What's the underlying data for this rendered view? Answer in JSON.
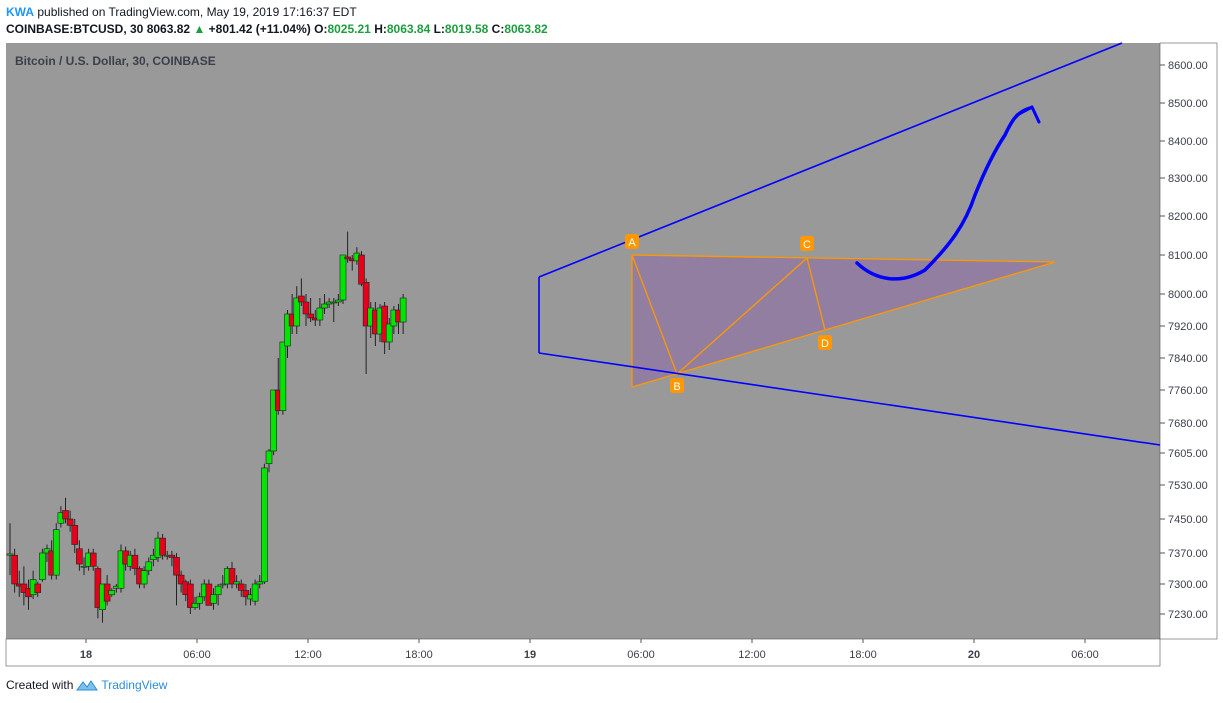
{
  "header": {
    "author": "KWA",
    "published_text": "published on TradingView.com, May 19, 2019 17:16:37 EDT",
    "symbol": "COINBASE:BTCUSD, 30",
    "last": "8063.82",
    "change": "+801.42 (+11.04%)",
    "o_label": "O:",
    "o_value": "8025.21",
    "h_label": "H:",
    "h_value": "8063.84",
    "l_label": "L:",
    "l_value": "8019.58",
    "c_label": "C:",
    "c_value": "8063.82"
  },
  "footer": {
    "created_with": "Created with",
    "brand": "TradingView"
  },
  "colors": {
    "plot_bg": "#999999",
    "up": "#00e600",
    "down": "#e6001a",
    "trend": "#0000ff",
    "pattern": "#ff9800"
  },
  "chart_data": {
    "type": "candlestick",
    "title": "Bitcoin / U.S. Dollar, 30, COINBASE",
    "interval_minutes": 30,
    "y_axis_ticks": [
      "8600.00",
      "8500.00",
      "8400.00",
      "8300.00",
      "8200.00",
      "8100.00",
      "8000.00",
      "7920.00",
      "7840.00",
      "7760.00",
      "7680.00",
      "7605.00",
      "7530.00",
      "7450.00",
      "7370.00",
      "7300.00",
      "7230.00"
    ],
    "x_axis_ticks": [
      "18",
      "06:00",
      "12:00",
      "18:00",
      "19",
      "06:00",
      "12:00",
      "18:00",
      "20",
      "06:00"
    ],
    "candles": [
      {
        "time": "May 17 22:30",
        "o": 7365,
        "h": 7440,
        "l": 7320,
        "c": 7368
      },
      {
        "time": "May 17 23:00",
        "o": 7365,
        "h": 7380,
        "l": 7280,
        "c": 7300
      },
      {
        "time": "May 17 23:30",
        "o": 7300,
        "h": 7330,
        "l": 7270,
        "c": 7295
      },
      {
        "time": "May 18 00:00",
        "o": 7300,
        "h": 7340,
        "l": 7250,
        "c": 7280
      },
      {
        "time": "May 18 00:30",
        "o": 7290,
        "h": 7310,
        "l": 7240,
        "c": 7270
      },
      {
        "time": "May 18 01:00",
        "o": 7275,
        "h": 7330,
        "l": 7265,
        "c": 7310
      },
      {
        "time": "May 18 01:30",
        "o": 7300,
        "h": 7305,
        "l": 7270,
        "c": 7280
      },
      {
        "time": "May 18 02:00",
        "o": 7310,
        "h": 7380,
        "l": 7305,
        "c": 7370
      },
      {
        "time": "May 18 02:30",
        "o": 7370,
        "h": 7390,
        "l": 7350,
        "c": 7380
      },
      {
        "time": "May 18 03:00",
        "o": 7375,
        "h": 7400,
        "l": 7310,
        "c": 7320
      },
      {
        "time": "May 18 03:30",
        "o": 7320,
        "h": 7440,
        "l": 7310,
        "c": 7425
      },
      {
        "time": "May 18 04:00",
        "o": 7440,
        "h": 7480,
        "l": 7430,
        "c": 7465
      },
      {
        "time": "May 18 04:30",
        "o": 7470,
        "h": 7500,
        "l": 7440,
        "c": 7450
      },
      {
        "time": "May 18 05:00",
        "o": 7450,
        "h": 7470,
        "l": 7420,
        "c": 7435
      },
      {
        "time": "May 18 05:30",
        "o": 7435,
        "h": 7450,
        "l": 7370,
        "c": 7390
      },
      {
        "time": "May 18 06:00",
        "o": 7380,
        "h": 7400,
        "l": 7330,
        "c": 7345
      },
      {
        "time": "May 18 06:30",
        "o": 7340,
        "h": 7360,
        "l": 7320,
        "c": 7340
      },
      {
        "time": "May 18 07:00",
        "o": 7340,
        "h": 7380,
        "l": 7330,
        "c": 7370
      },
      {
        "time": "May 18 07:30",
        "o": 7370,
        "h": 7380,
        "l": 7330,
        "c": 7340
      },
      {
        "time": "May 18 08:00",
        "o": 7335,
        "h": 7340,
        "l": 7220,
        "c": 7245
      },
      {
        "time": "May 18 08:30",
        "o": 7240,
        "h": 7300,
        "l": 7210,
        "c": 7300
      },
      {
        "time": "May 18 09:00",
        "o": 7300,
        "h": 7320,
        "l": 7250,
        "c": 7260
      },
      {
        "time": "May 18 09:30",
        "o": 7275,
        "h": 7290,
        "l": 7270,
        "c": 7285
      },
      {
        "time": "May 18 10:00",
        "o": 7290,
        "h": 7300,
        "l": 7280,
        "c": 7295
      },
      {
        "time": "May 18 10:30",
        "o": 7290,
        "h": 7390,
        "l": 7280,
        "c": 7375
      },
      {
        "time": "May 18 11:00",
        "o": 7375,
        "h": 7385,
        "l": 7330,
        "c": 7345
      },
      {
        "time": "May 18 11:30",
        "o": 7340,
        "h": 7375,
        "l": 7330,
        "c": 7365
      },
      {
        "time": "May 18 12:00",
        "o": 7365,
        "h": 7380,
        "l": 7320,
        "c": 7335
      },
      {
        "time": "May 18 12:30",
        "o": 7335,
        "h": 7340,
        "l": 7290,
        "c": 7300
      },
      {
        "time": "May 18 13:00",
        "o": 7300,
        "h": 7340,
        "l": 7290,
        "c": 7330
      },
      {
        "time": "May 18 13:30",
        "o": 7330,
        "h": 7360,
        "l": 7320,
        "c": 7350
      },
      {
        "time": "May 18 14:00",
        "o": 7355,
        "h": 7380,
        "l": 7340,
        "c": 7365
      },
      {
        "time": "May 18 14:30",
        "o": 7360,
        "h": 7420,
        "l": 7350,
        "c": 7405
      },
      {
        "time": "May 18 15:00",
        "o": 7405,
        "h": 7415,
        "l": 7355,
        "c": 7365
      },
      {
        "time": "May 18 15:30",
        "o": 7365,
        "h": 7375,
        "l": 7355,
        "c": 7365
      },
      {
        "time": "May 18 16:00",
        "o": 7365,
        "h": 7375,
        "l": 7340,
        "c": 7360
      },
      {
        "time": "May 18 16:30",
        "o": 7360,
        "h": 7370,
        "l": 7250,
        "c": 7320
      },
      {
        "time": "May 18 17:00",
        "o": 7320,
        "h": 7330,
        "l": 7280,
        "c": 7300
      },
      {
        "time": "May 18 17:30",
        "o": 7305,
        "h": 7310,
        "l": 7260,
        "c": 7275
      },
      {
        "time": "May 18 18:00",
        "o": 7300,
        "h": 7310,
        "l": 7230,
        "c": 7245
      },
      {
        "time": "May 18 18:30",
        "o": 7245,
        "h": 7270,
        "l": 7240,
        "c": 7255
      },
      {
        "time": "May 18 19:00",
        "o": 7255,
        "h": 7280,
        "l": 7240,
        "c": 7270
      },
      {
        "time": "May 18 19:30",
        "o": 7270,
        "h": 7310,
        "l": 7260,
        "c": 7300
      },
      {
        "time": "May 18 20:00",
        "o": 7300,
        "h": 7310,
        "l": 7250,
        "c": 7250
      },
      {
        "time": "May 18 20:30",
        "o": 7255,
        "h": 7290,
        "l": 7240,
        "c": 7275
      },
      {
        "time": "May 18 21:00",
        "o": 7275,
        "h": 7300,
        "l": 7250,
        "c": 7295
      },
      {
        "time": "May 18 21:30",
        "o": 7300,
        "h": 7320,
        "l": 7290,
        "c": 7300
      },
      {
        "time": "May 18 22:00",
        "o": 7300,
        "h": 7340,
        "l": 7290,
        "c": 7335
      },
      {
        "time": "May 18 22:30",
        "o": 7335,
        "h": 7350,
        "l": 7290,
        "c": 7300
      },
      {
        "time": "May 18 23:00",
        "o": 7300,
        "h": 7320,
        "l": 7290,
        "c": 7305
      },
      {
        "time": "May 18 23:30",
        "o": 7300,
        "h": 7310,
        "l": 7270,
        "c": 7285
      },
      {
        "time": "May 19 00:00",
        "o": 7285,
        "h": 7300,
        "l": 7250,
        "c": 7270
      },
      {
        "time": "May 19 00:30",
        "o": 7265,
        "h": 7290,
        "l": 7250,
        "c": 7275
      },
      {
        "time": "May 19 01:00",
        "o": 7260,
        "h": 7310,
        "l": 7250,
        "c": 7300
      },
      {
        "time": "May 19 01:30",
        "o": 7300,
        "h": 7320,
        "l": 7290,
        "c": 7305
      },
      {
        "time": "May 19 02:00",
        "o": 7305,
        "h": 7580,
        "l": 7300,
        "c": 7570
      },
      {
        "time": "May 19 02:30",
        "o": 7580,
        "h": 7615,
        "l": 7560,
        "c": 7610
      },
      {
        "time": "May 19 03:00",
        "o": 7610,
        "h": 7760,
        "l": 7600,
        "c": 7760
      },
      {
        "time": "May 19 03:30",
        "o": 7760,
        "h": 7840,
        "l": 7700,
        "c": 7710
      },
      {
        "time": "May 19 04:00",
        "o": 7710,
        "h": 7880,
        "l": 7700,
        "c": 7880
      },
      {
        "time": "May 19 04:30",
        "o": 7870,
        "h": 7960,
        "l": 7840,
        "c": 7950
      },
      {
        "time": "May 19 05:00",
        "o": 7950,
        "h": 8000,
        "l": 7900,
        "c": 7920
      },
      {
        "time": "May 19 05:30",
        "o": 7920,
        "h": 8020,
        "l": 7900,
        "c": 7990
      },
      {
        "time": "May 19 06:00",
        "o": 7995,
        "h": 8040,
        "l": 7970,
        "c": 7980
      },
      {
        "time": "May 19 06:30",
        "o": 7980,
        "h": 8000,
        "l": 7920,
        "c": 7950
      },
      {
        "time": "May 19 07:00",
        "o": 7950,
        "h": 7990,
        "l": 7930,
        "c": 7940
      },
      {
        "time": "May 19 07:30",
        "o": 7940,
        "h": 7960,
        "l": 7920,
        "c": 7935
      },
      {
        "time": "May 19 08:00",
        "o": 7935,
        "h": 7990,
        "l": 7920,
        "c": 7965
      },
      {
        "time": "May 19 08:30",
        "o": 7965,
        "h": 8000,
        "l": 7950,
        "c": 7975
      },
      {
        "time": "May 19 09:00",
        "o": 7975,
        "h": 7990,
        "l": 7965,
        "c": 7980
      },
      {
        "time": "May 19 09:30",
        "o": 7980,
        "h": 7990,
        "l": 7930,
        "c": 7980
      },
      {
        "time": "May 19 10:00",
        "o": 7980,
        "h": 8000,
        "l": 7970,
        "c": 7985
      },
      {
        "time": "May 19 10:30",
        "o": 7985,
        "h": 8100,
        "l": 7975,
        "c": 8100
      },
      {
        "time": "May 19 11:00",
        "o": 8095,
        "h": 8160,
        "l": 8080,
        "c": 8090
      },
      {
        "time": "May 19 11:30",
        "o": 8090,
        "h": 8100,
        "l": 8060,
        "c": 8085
      },
      {
        "time": "May 19 12:00",
        "o": 8085,
        "h": 8120,
        "l": 8075,
        "c": 8105
      },
      {
        "time": "May 19 12:30",
        "o": 8100,
        "h": 8110,
        "l": 8020,
        "c": 8025
      },
      {
        "time": "May 19 13:00",
        "o": 8030,
        "h": 8040,
        "l": 7800,
        "c": 7920
      },
      {
        "time": "May 19 13:30",
        "o": 7920,
        "h": 7980,
        "l": 7890,
        "c": 7965
      },
      {
        "time": "May 19 14:00",
        "o": 7960,
        "h": 7980,
        "l": 7870,
        "c": 7900
      },
      {
        "time": "May 19 14:30",
        "o": 7900,
        "h": 7975,
        "l": 7880,
        "c": 7965
      },
      {
        "time": "May 19 15:00",
        "o": 7970,
        "h": 7980,
        "l": 7850,
        "c": 7880
      },
      {
        "time": "May 19 15:30",
        "o": 7880,
        "h": 7940,
        "l": 7860,
        "c": 7925
      },
      {
        "time": "May 19 16:00",
        "o": 7920,
        "h": 7970,
        "l": 7900,
        "c": 7960
      },
      {
        "time": "May 19 16:30",
        "o": 7960,
        "h": 7975,
        "l": 7900,
        "c": 7930
      },
      {
        "time": "May 19 17:00",
        "o": 7930,
        "h": 8000,
        "l": 7900,
        "c": 7990
      }
    ]
  }
}
